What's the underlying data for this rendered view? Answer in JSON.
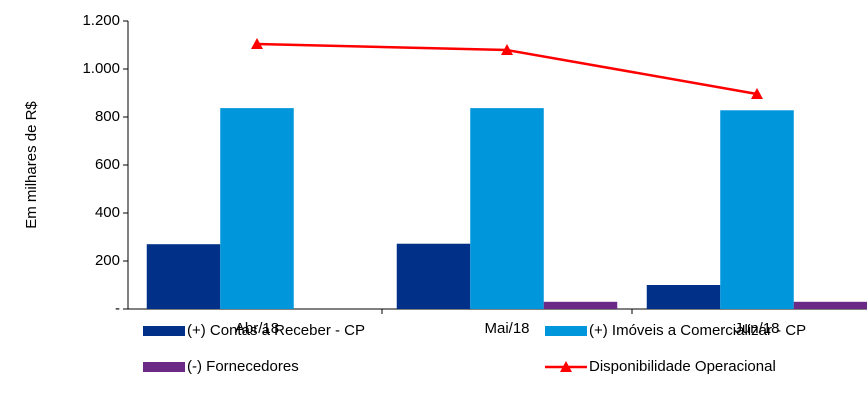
{
  "chart_data": {
    "type": "bar_line",
    "y_label": "Em milhares de R$",
    "categories": [
      "Abr/18",
      "Mai/18",
      "Jun/18"
    ],
    "ylim": [
      0,
      1200
    ],
    "yticks": [
      {
        "value": 0,
        "label": "-"
      },
      200,
      400,
      600,
      800,
      {
        "value": 1000,
        "label": "1.000"
      },
      {
        "value": 1200,
        "label": "1.200"
      }
    ],
    "series": [
      {
        "name": "(+) Contas a Receber - CP",
        "color": "#003087",
        "kind": "bar",
        "values": [
          270,
          272,
          100
        ]
      },
      {
        "name": "(+) Imóveis a Comercializar - CP",
        "color": "#0096dc",
        "kind": "bar",
        "values": [
          837,
          837,
          828
        ]
      },
      {
        "name": "(-) Fornecedores",
        "color": "#6a2a86",
        "kind": "bar",
        "values": [
          0,
          30,
          30
        ]
      },
      {
        "name": "Disponibilidade Operacional",
        "color": "#ff0000",
        "kind": "line",
        "values": [
          1104,
          1079,
          896
        ]
      }
    ]
  }
}
